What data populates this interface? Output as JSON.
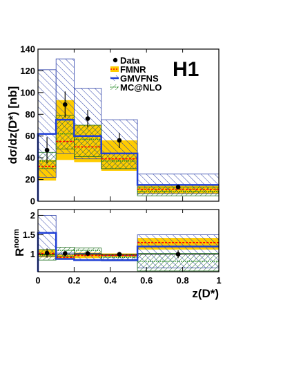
{
  "logo": "H1",
  "xlabel": "z(D*)",
  "legend": {
    "data": "Data",
    "fmnr": "FMNR",
    "gmvfns": "GMVFNS",
    "mcatnlo": "MC@NLO"
  },
  "colors": {
    "data": "#000000",
    "fmnr_band": "#ffcc00",
    "fmnr_line": "#ff0000",
    "gmvfns_line": "#1f3fd6",
    "gmvfns_hatch": "#2b3fa8",
    "mcatnlo_line": "#1a8a1a",
    "mcatnlo_hatch": "#1e6e1e"
  },
  "chart_data": [
    {
      "type": "histogram",
      "ylabel": "dσ/dz(D*) [nb]",
      "xlim": [
        0,
        1
      ],
      "ylim": [
        0,
        140
      ],
      "xticks": [
        "0",
        "0.2",
        "0.4",
        "0.6",
        "0.8",
        "1"
      ],
      "yticks": [
        "0",
        "20",
        "40",
        "60",
        "80",
        "100",
        "120",
        "140"
      ],
      "bin_edges": [
        0,
        0.1,
        0.2,
        0.35,
        0.55,
        1
      ],
      "series": [
        {
          "name": "Data",
          "kind": "points",
          "x": [
            0.05,
            0.15,
            0.275,
            0.45,
            0.775
          ],
          "y": [
            47,
            89,
            76,
            56,
            13
          ],
          "err": [
            12,
            12,
            8,
            7,
            2
          ]
        },
        {
          "name": "FMNR",
          "kind": "band",
          "central": [
            32,
            55,
            50,
            39,
            11
          ],
          "low": [
            19,
            38,
            36,
            28,
            7
          ],
          "high": [
            38,
            93,
            70,
            56,
            15
          ]
        },
        {
          "name": "GMVFNS",
          "kind": "band",
          "central": [
            62,
            75,
            60,
            44,
            15
          ],
          "low": [
            22,
            44,
            39,
            30,
            7
          ],
          "high": [
            121,
            131,
            104,
            75,
            25
          ]
        },
        {
          "name": "MC@NLO",
          "kind": "band",
          "central": [
            37,
            62,
            57,
            37,
            9
          ],
          "low": [
            30,
            48,
            41,
            30,
            5
          ],
          "high": [
            45,
            79,
            70,
            44,
            13
          ]
        }
      ]
    },
    {
      "type": "histogram",
      "ylabel": "R",
      "ylabel_sup": "norm",
      "xlim": [
        0,
        1
      ],
      "ylim": [
        0.55,
        2.15
      ],
      "xticks": [
        "0",
        "0.2",
        "0.4",
        "0.6",
        "0.8",
        "1"
      ],
      "yticks": [
        "1",
        "1.5",
        "2"
      ],
      "bin_edges": [
        0,
        0.1,
        0.2,
        0.35,
        0.55,
        1
      ],
      "series": [
        {
          "name": "Data",
          "kind": "points",
          "x": [
            0.05,
            0.15,
            0.275,
            0.45,
            0.775
          ],
          "y": [
            1.03,
            1.02,
            1.02,
            1.0,
            1.0
          ],
          "err": [
            0.12,
            0.07,
            0.07,
            0.06,
            0.1
          ]
        },
        {
          "name": "FMNR",
          "kind": "band",
          "central": [
            1.02,
            0.92,
            0.97,
            0.97,
            1.3
          ],
          "low": [
            0.92,
            0.86,
            0.9,
            0.93,
            1.12
          ],
          "high": [
            1.12,
            0.98,
            1.04,
            1.02,
            1.42
          ]
        },
        {
          "name": "GMVFNS",
          "kind": "band",
          "central": [
            1.55,
            0.88,
            0.85,
            0.85,
            1.2
          ],
          "low": [
            0.95,
            0.87,
            0.84,
            0.83,
            0.65
          ],
          "high": [
            2.0,
            1.03,
            1.02,
            0.97,
            1.5
          ]
        },
        {
          "name": "MC@NLO",
          "kind": "band",
          "central": [
            0.98,
            1.1,
            1.1,
            0.92,
            0.82
          ],
          "low": [
            0.85,
            0.95,
            1.0,
            0.85,
            0.57
          ],
          "high": [
            1.12,
            1.18,
            1.16,
            1.0,
            1.02
          ]
        }
      ]
    }
  ]
}
